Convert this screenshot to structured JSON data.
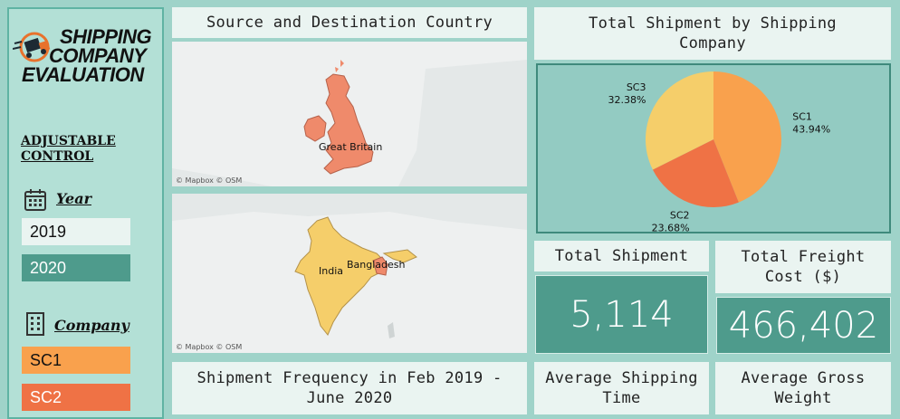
{
  "sidebar": {
    "logo_line1": "SHIPPING",
    "logo_line2": "COMPANY",
    "logo_line3": "EVALUATION",
    "control_title_line1": "ADJUSTABLE",
    "control_title_line2": "CONTROL",
    "year_label": "Year",
    "years": [
      {
        "label": "2019",
        "selected": false
      },
      {
        "label": "2020",
        "selected": true
      }
    ],
    "company_label": "Company",
    "companies": [
      {
        "label": "SC1",
        "color": "#f9a14d"
      },
      {
        "label": "SC2",
        "color": "#ef7245"
      }
    ]
  },
  "map_section": {
    "title": "Source and Destination Country",
    "source_label": "Great Britain",
    "dest_labels": [
      "India",
      "Bangladesh"
    ],
    "attribution": "© Mapbox © OSM"
  },
  "pie": {
    "title": "Total Shipment by Shipping Company",
    "colors": {
      "SC1": "#f9a14d",
      "SC2": "#ef7245",
      "SC3": "#f5ce6a"
    }
  },
  "chart_data": {
    "type": "pie",
    "title": "Total Shipment by Shipping Company",
    "labels": [
      "SC1",
      "SC2",
      "SC3"
    ],
    "values": [
      43.94,
      23.68,
      32.38
    ],
    "value_labels": [
      "43.94%",
      "23.68%",
      "32.38%"
    ]
  },
  "kpis": {
    "total_shipment_title": "Total Shipment",
    "total_shipment_value": "5,114",
    "total_freight_title": "Total Freight Cost ($)",
    "total_freight_value": "466,402",
    "avg_shipping_time_title": "Average Shipping Time",
    "avg_gross_weight_title": "Average Gross Weight"
  },
  "frequency": {
    "title": "Shipment Frequency in Feb 2019 - June 2020"
  }
}
